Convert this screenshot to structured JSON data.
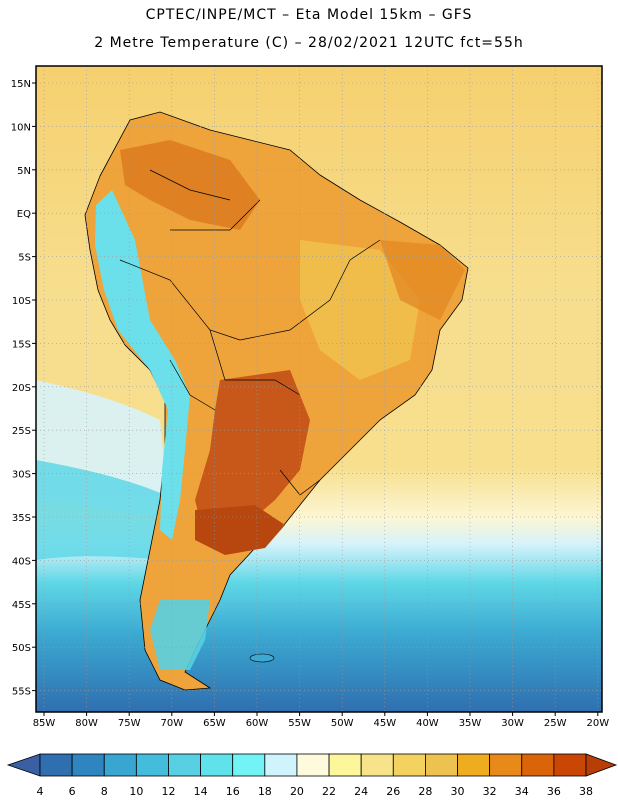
{
  "header": {
    "line1": "CPTEC/INPE/MCT –  Eta Model 15km – GFS",
    "line2": "2 Metre Temperature (C) – 28/02/2021 12UTC fct=55h"
  },
  "axes": {
    "lat_labels": [
      "15N",
      "10N",
      "5N",
      "EQ",
      "5S",
      "10S",
      "15S",
      "20S",
      "25S",
      "30S",
      "35S",
      "40S",
      "45S",
      "50S",
      "55S"
    ],
    "lon_labels": [
      "85W",
      "80W",
      "75W",
      "70W",
      "65W",
      "60W",
      "55W",
      "50W",
      "45W",
      "40W",
      "35W",
      "30W",
      "25W",
      "20W"
    ]
  },
  "colorbar": {
    "levels": [
      "4",
      "6",
      "8",
      "10",
      "12",
      "14",
      "16",
      "18",
      "20",
      "22",
      "24",
      "26",
      "28",
      "30",
      "32",
      "34",
      "36",
      "38"
    ],
    "colors": [
      "#3b5fa3",
      "#2f6fb0",
      "#2e85c0",
      "#38a6d0",
      "#44bddd",
      "#56d0e2",
      "#5fe2ec",
      "#72f4f6",
      "#d0f4fc",
      "#fefadc",
      "#fcf79a",
      "#f7e38a",
      "#f3d260",
      "#eec24e",
      "#efac1e",
      "#e88a1a",
      "#dc6408",
      "#c94605",
      "#b73e06"
    ]
  },
  "map_legend": {
    "ocean_north": "#f7d67a",
    "ocean_tropical": "#f7df8d",
    "ocean_mid": "#d6f3fb",
    "ocean_cool": "#5fd7e6",
    "ocean_cold": "#3ba9d2",
    "ocean_deep": "#2f6fb0",
    "land_hot": "#e48a23",
    "land_very_hot": "#c8581a",
    "land_warm": "#f0c24f",
    "andes": "#6ce0ea",
    "border": "#000000",
    "grid": "#9a9a9a"
  }
}
